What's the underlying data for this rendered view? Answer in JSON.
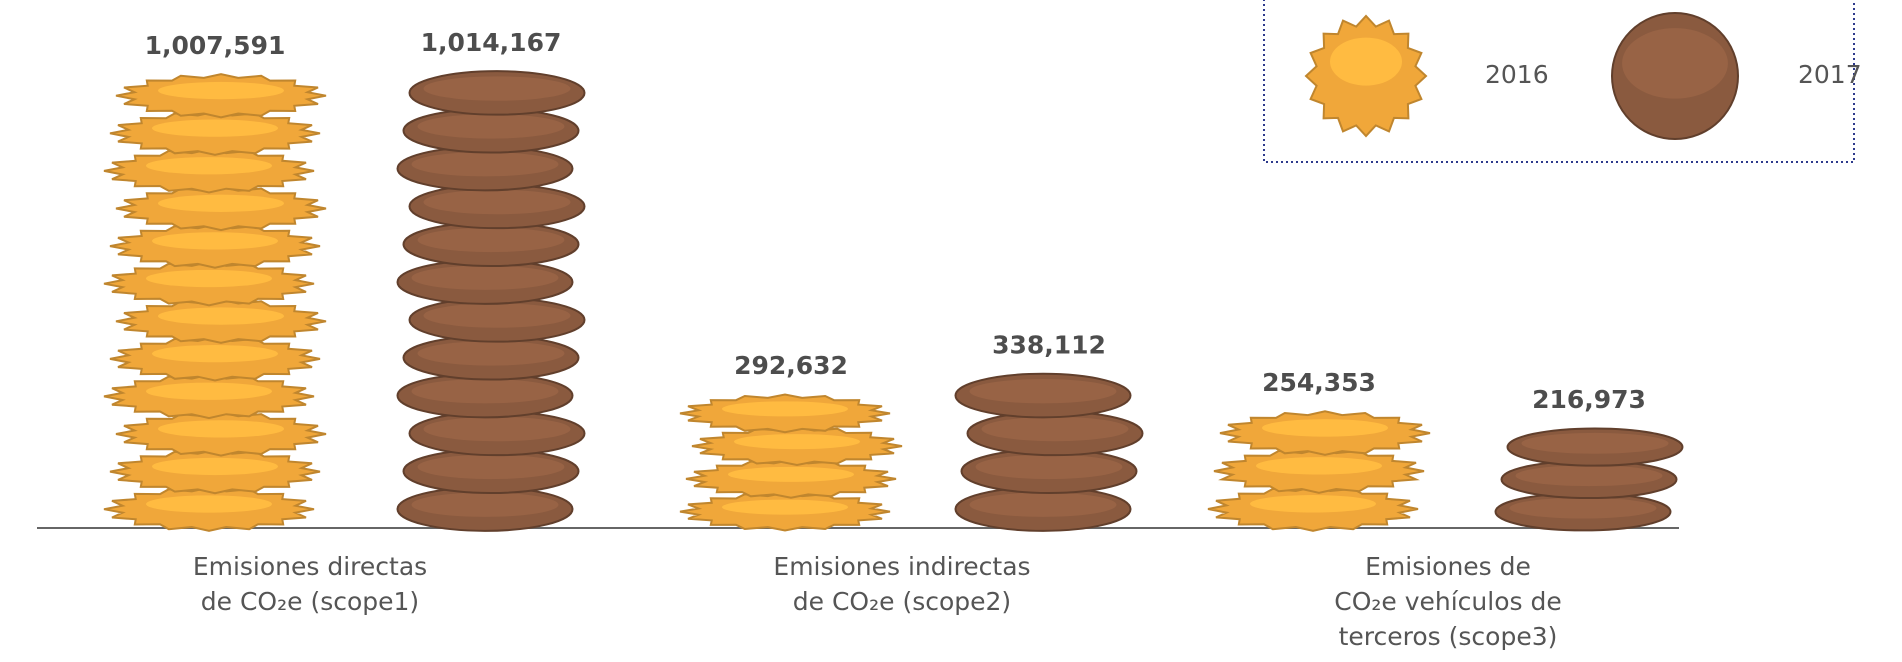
{
  "chart_data": {
    "type": "bar",
    "categories": [
      [
        "Emisiones directas",
        "de CO₂e (scope1)"
      ],
      [
        "Emisiones indirectas",
        "de CO₂e (scope2)"
      ],
      [
        "Emisiones de",
        "CO₂e vehículos de",
        "terceros (scope3)"
      ]
    ],
    "series": [
      {
        "name": "2016",
        "color": "#f0a73a",
        "values": [
          1007591,
          292632,
          254353
        ],
        "value_labels": [
          "1,007,591",
          "292,632",
          "254,353"
        ]
      },
      {
        "name": "2017",
        "color": "#8a5a3f",
        "values": [
          1014167,
          338112,
          216973
        ],
        "value_labels": [
          "1,014,167",
          "338,112",
          "216,973"
        ]
      }
    ],
    "legend": "top-right"
  }
}
